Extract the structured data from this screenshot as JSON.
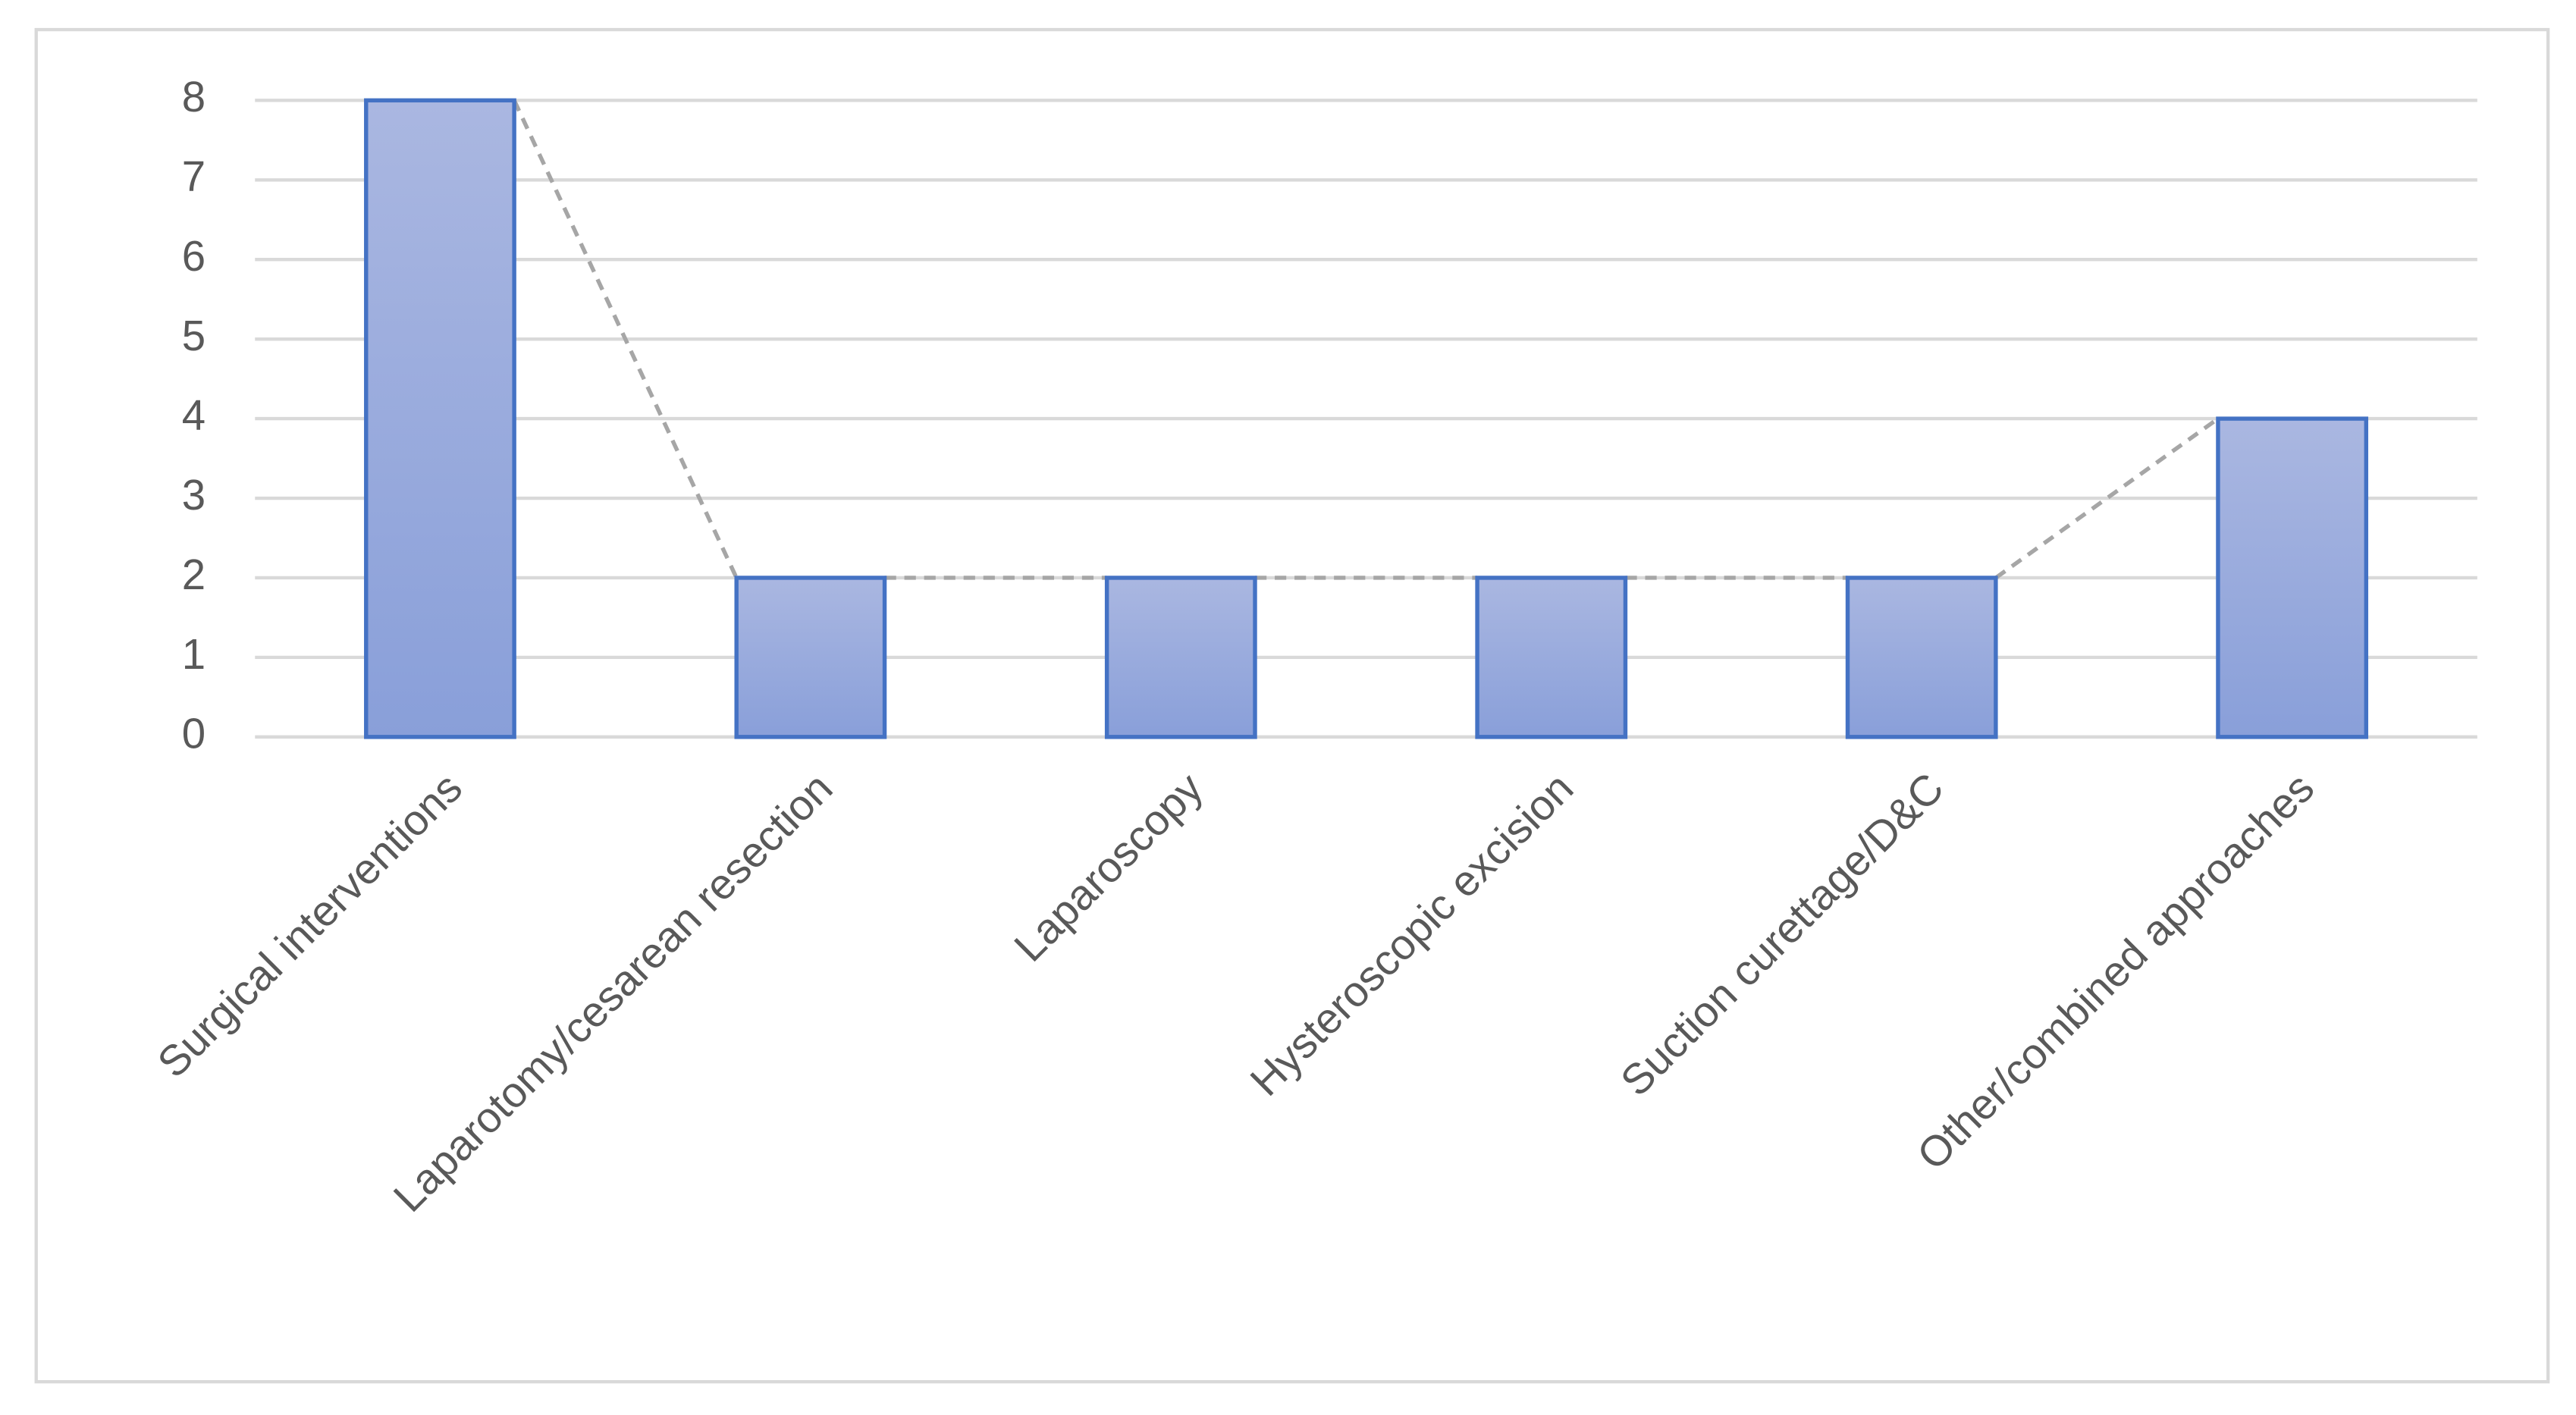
{
  "chart_data": {
    "type": "bar",
    "categories": [
      "Surgical interventions",
      "Laparotomy/cesarean resection",
      "Laparoscopy",
      "Hysteroscopic excision",
      "Suction curettage/D&C",
      "Other/combined approaches"
    ],
    "values": [
      8,
      2,
      2,
      2,
      2,
      4
    ],
    "color": "#4472c4",
    "ylim": [
      0,
      8
    ],
    "yticks": [
      0,
      1,
      2,
      3,
      4,
      5,
      6,
      7,
      8
    ],
    "grid": true,
    "series_lines": true
  }
}
